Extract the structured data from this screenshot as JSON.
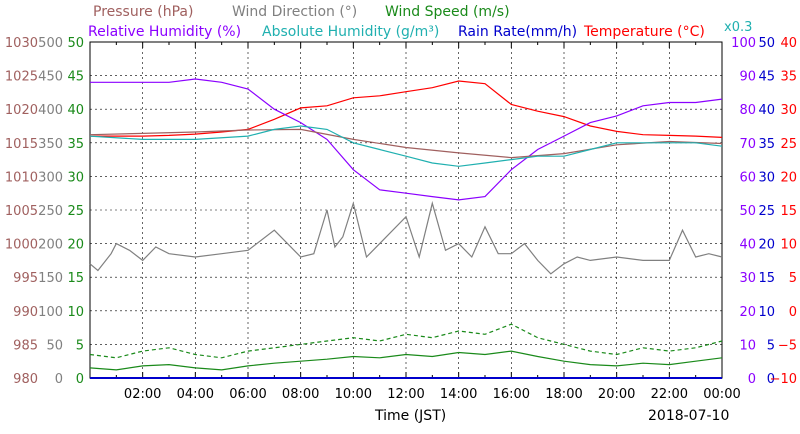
{
  "chart_data": {
    "type": "line",
    "xlabel": "Time (JST)",
    "date": "2018-07-10",
    "x_ticks": [
      "02:00",
      "04:00",
      "06:00",
      "08:00",
      "10:00",
      "12:00",
      "14:00",
      "16:00",
      "18:00",
      "20:00",
      "22:00",
      "00:00"
    ],
    "grid": true,
    "legend": [
      {
        "label": "Pressure (hPa)",
        "color": "#a0605f"
      },
      {
        "label": "Wind Direction (°)",
        "color": "#808080"
      },
      {
        "label": "Wind Speed (m/s)",
        "color": "#1a8a1a"
      },
      {
        "label": "Relative Humidity (%)",
        "color": "#8b00ff"
      },
      {
        "label": "Absolute Humidity (g/m³)",
        "color": "#20b0b0"
      },
      {
        "label": "Rain Rate(mm/h)",
        "color": "#0000cc"
      },
      {
        "label": "Temperature (°C)",
        "color": "#ff0000"
      }
    ],
    "abs_humidity_scale_note": "x0.3",
    "axes": {
      "pressure": {
        "color": "#a0605f",
        "ticks": [
          "1030",
          "1025",
          "1020",
          "1015",
          "1010",
          "1005",
          "1000",
          "995",
          "990",
          "985",
          "980"
        ],
        "range": [
          980,
          1030
        ]
      },
      "wind_direction": {
        "color": "#808080",
        "ticks": [
          "500",
          "450",
          "400",
          "350",
          "300",
          "250",
          "200",
          "150",
          "100",
          "50",
          "0"
        ],
        "range": [
          0,
          500
        ]
      },
      "wind_speed": {
        "color": "#1a8a1a",
        "ticks": [
          "50",
          "45",
          "40",
          "35",
          "30",
          "25",
          "20",
          "15",
          "10",
          "5",
          "0"
        ],
        "range": [
          0,
          50
        ]
      },
      "relative_humidity": {
        "color": "#8b00ff",
        "ticks": [
          "100",
          "90",
          "80",
          "70",
          "60",
          "50",
          "40",
          "30",
          "20",
          "10",
          "0"
        ],
        "range": [
          0,
          100
        ]
      },
      "rain_rate": {
        "color": "#0000cc",
        "ticks": [
          "50",
          "45",
          "40",
          "35",
          "30",
          "25",
          "20",
          "15",
          "10",
          "5",
          "0"
        ],
        "range": [
          0,
          50
        ]
      },
      "temperature": {
        "color": "#ff0000",
        "ticks": [
          "40",
          "35",
          "30",
          "25",
          "20",
          "15",
          "10",
          "5",
          "0",
          "−5",
          "−10"
        ],
        "range": [
          -10,
          40
        ]
      }
    },
    "series": [
      {
        "name": "Temperature (°C)",
        "axis": "temperature",
        "color": "#ff0000",
        "x": [
          0,
          1,
          2,
          3,
          4,
          5,
          6,
          7,
          8,
          9,
          10,
          11,
          12,
          13,
          14,
          15,
          16,
          17,
          18,
          19,
          20,
          21,
          22,
          23,
          24
        ],
        "y": [
          26.0,
          26.0,
          26.0,
          26.1,
          26.3,
          26.6,
          27.0,
          28.5,
          30.2,
          30.5,
          31.7,
          32.0,
          32.6,
          33.2,
          34.2,
          33.8,
          30.7,
          29.7,
          28.9,
          27.5,
          26.7,
          26.2,
          26.1,
          26.0,
          25.8
        ]
      },
      {
        "name": "Relative Humidity (%)",
        "axis": "relative_humidity",
        "color": "#8b00ff",
        "x": [
          0,
          1,
          2,
          3,
          4,
          5,
          6,
          7,
          8,
          9,
          10,
          11,
          12,
          13,
          14,
          15,
          16,
          17,
          18,
          19,
          20,
          21,
          22,
          23,
          24
        ],
        "y": [
          88,
          88,
          88,
          88,
          89,
          88,
          86,
          80,
          76,
          71,
          62,
          56,
          55,
          54,
          53,
          54,
          62,
          68,
          72,
          76,
          78,
          81,
          82,
          82,
          83
        ]
      },
      {
        "name": "Pressure (hPa)",
        "axis": "pressure",
        "color": "#a0605f",
        "x": [
          0,
          2,
          4,
          6,
          8,
          10,
          12,
          14,
          16,
          18,
          20,
          22,
          24
        ],
        "y": [
          1016.2,
          1016.4,
          1016.6,
          1016.9,
          1017.0,
          1015.5,
          1014.3,
          1013.5,
          1012.8,
          1013.4,
          1014.7,
          1015.2,
          1014.9
        ]
      },
      {
        "name": "Absolute Humidity (g/m³)",
        "axis": "wind_speed",
        "color": "#20b0b0",
        "x": [
          0,
          2,
          4,
          6,
          7,
          8,
          9,
          10,
          11,
          12,
          13,
          14,
          15,
          16,
          17,
          18,
          19,
          20,
          21,
          22,
          23,
          24
        ],
        "y": [
          36,
          35.5,
          35.5,
          36,
          37,
          37.5,
          37,
          35,
          34,
          33,
          32,
          31.5,
          32,
          32.5,
          33,
          33,
          34,
          35,
          35,
          35,
          35,
          34.5
        ]
      },
      {
        "name": "Wind Direction (°)",
        "axis": "wind_direction",
        "color": "#808080",
        "x": [
          0,
          0.3,
          0.8,
          1,
          1.5,
          2,
          2.5,
          3,
          4,
          5,
          6,
          7,
          8,
          8.5,
          9,
          9.3,
          9.6,
          10,
          10.5,
          11,
          12,
          12.5,
          13,
          13.5,
          14,
          14.5,
          15,
          15.5,
          16,
          16.5,
          17,
          17.5,
          18,
          18.5,
          19,
          20,
          21,
          22,
          22.5,
          23,
          23.5,
          24
        ],
        "y": [
          170,
          160,
          185,
          200,
          190,
          175,
          195,
          185,
          180,
          185,
          190,
          220,
          180,
          185,
          250,
          195,
          210,
          260,
          180,
          200,
          240,
          180,
          260,
          190,
          200,
          180,
          225,
          185,
          185,
          200,
          175,
          155,
          170,
          180,
          175,
          180,
          175,
          175,
          220,
          180,
          185,
          180
        ]
      },
      {
        "name": "Wind Speed (m/s)",
        "axis": "wind_speed",
        "color": "#1a8a1a",
        "x": [
          0,
          1,
          2,
          3,
          4,
          5,
          6,
          7,
          8,
          9,
          10,
          11,
          12,
          13,
          14,
          15,
          16,
          17,
          18,
          19,
          20,
          21,
          22,
          23,
          24
        ],
        "y": [
          1.5,
          1.2,
          1.8,
          2.0,
          1.5,
          1.2,
          1.8,
          2.2,
          2.5,
          2.8,
          3.2,
          3.0,
          3.5,
          3.2,
          3.8,
          3.5,
          4.0,
          3.2,
          2.5,
          2.0,
          1.8,
          2.2,
          2.0,
          2.5,
          3.0
        ]
      },
      {
        "name": "Wind Speed (m/s)",
        "axis": "wind_speed",
        "color": "#1a8a1a",
        "dashed": true,
        "x": [
          0,
          1,
          2,
          3,
          4,
          5,
          6,
          7,
          8,
          9,
          10,
          11,
          12,
          13,
          14,
          15,
          16,
          17,
          18,
          19,
          20,
          21,
          22,
          23,
          24
        ],
        "y": [
          3.5,
          3.0,
          4.0,
          4.5,
          3.5,
          3.0,
          4.0,
          4.5,
          5.0,
          5.5,
          6.0,
          5.5,
          6.5,
          6.0,
          7.0,
          6.5,
          8.0,
          6.0,
          5.0,
          4.0,
          3.5,
          4.5,
          4.0,
          4.5,
          5.5
        ]
      },
      {
        "name": "Rain Rate(mm/h)",
        "axis": "rain_rate",
        "color": "#0000cc",
        "x": [
          0,
          24
        ],
        "y": [
          0,
          0
        ]
      }
    ]
  }
}
